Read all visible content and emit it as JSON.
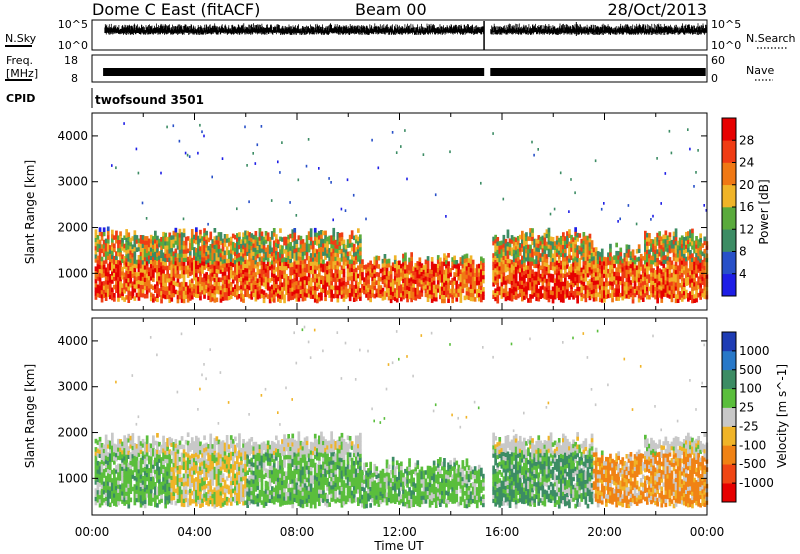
{
  "header": {
    "title": "Dome C East (fitACF)",
    "beam": "Beam 00",
    "date": "28/Oct/2013"
  },
  "chart_data": [
    {
      "type": "line",
      "name": "nsky-nsearch-panel",
      "left_label": "N.Sky",
      "right_label": "N.Search",
      "left_ticks": [
        "10^5",
        "10^0"
      ],
      "right_ticks": [
        "10^5",
        "10^0"
      ],
      "gap_hours": [
        15.3,
        15.55
      ]
    },
    {
      "type": "line",
      "name": "freq-nave-panel",
      "left_label_top": "Freq.",
      "left_label_bottom": "[MHz]",
      "right_label": "Nave",
      "left_ticks": [
        "18",
        "8"
      ],
      "right_ticks": [
        "60",
        "0"
      ],
      "gap_hours": [
        15.3,
        15.55
      ]
    },
    {
      "type": "table",
      "name": "cpid-panel",
      "label": "CPID",
      "program": "twofsound 3501"
    },
    {
      "type": "heatmap",
      "name": "power-panel",
      "ylabel": "Slant Range [km]",
      "yticks": [
        "1000",
        "2000",
        "3000",
        "4000"
      ],
      "ylim": [
        200,
        4500
      ],
      "xlim_hours": [
        0,
        24
      ],
      "colorbar_label": "Power [dB]",
      "colorbar_ticks": [
        "4",
        "8",
        "12",
        "16",
        "20",
        "24",
        "28"
      ],
      "colorbar_colors": [
        "#1e1ee6",
        "#2850c8",
        "#3c8c64",
        "#5aaa3c",
        "#f0b428",
        "#f07814",
        "#f03c14",
        "#e60000"
      ],
      "data_gap_hours": [
        15.3,
        15.55
      ]
    },
    {
      "type": "heatmap",
      "name": "velocity-panel",
      "ylabel": "Slant Range [km]",
      "yticks": [
        "1000",
        "2000",
        "3000",
        "4000"
      ],
      "ylim": [
        200,
        4500
      ],
      "xlim_hours": [
        0,
        24
      ],
      "xticks": [
        "00:00",
        "04:00",
        "08:00",
        "12:00",
        "16:00",
        "20:00",
        "00:00"
      ],
      "xlabel": "Time UT",
      "colorbar_label": "Velocity [m s^-1]",
      "colorbar_ticks": [
        "1000",
        "500",
        "100",
        "25",
        "-25",
        "-100",
        "-500",
        "-1000"
      ],
      "colorbar_colors": [
        "#1e3cb4",
        "#2878c8",
        "#3c8c64",
        "#5abe3c",
        "#c8c8c8",
        "#f0b428",
        "#f08214",
        "#f04614",
        "#e60000"
      ],
      "data_gap_hours": [
        15.3,
        15.55
      ]
    }
  ]
}
